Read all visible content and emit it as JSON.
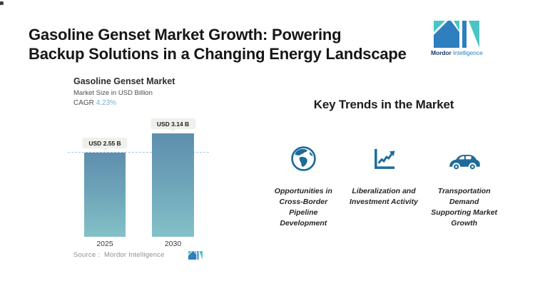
{
  "header": {
    "title_line1": "Gasoline Genset Market Growth: Powering",
    "title_line2": "Backup Solutions in a Changing Energy Landscape"
  },
  "logo": {
    "brand_bold": "Mordor",
    "brand_light": "Intelligence"
  },
  "chart": {
    "title": "Gasoline Genset Market",
    "subtitle": "Market Size in USD Billion",
    "cagr_label": "CAGR",
    "cagr_value": "4.23%",
    "source_label": "Source :",
    "source_value": "Mordor Intelligence"
  },
  "chart_data": {
    "type": "bar",
    "title": "Gasoline Genset Market",
    "subtitle": "Market Size in USD Billion",
    "unit": "USD Billion",
    "cagr_pct": 4.23,
    "categories": [
      "2025",
      "2030"
    ],
    "values": [
      2.55,
      3.14
    ],
    "bar_labels": [
      "USD 2.55 B",
      "USD 3.14 B"
    ],
    "ylim": [
      0,
      3.5
    ],
    "grid": false,
    "reference_line": 2.55,
    "legend": "none"
  },
  "trends": {
    "heading": "Key Trends in the Market",
    "items": [
      {
        "icon": "globe-icon",
        "label": "Opportunities in Cross-Border Pipeline Development"
      },
      {
        "icon": "trend-chart-icon",
        "label": "Liberalization and Investment Activity"
      },
      {
        "icon": "car-icon",
        "label": "Transportation Demand Supporting Market Growth"
      }
    ]
  },
  "colors": {
    "logo_teal": "#4cc4c6",
    "logo_blue": "#2e7fbe",
    "icon_blue": "#1e6b99",
    "bar_gradient_top": "#5e8fae",
    "bar_gradient_bottom": "#83c1c7",
    "cagr_value_color": "#79afd1",
    "dash_line": "#a5c9dc",
    "chip_bg": "#eef0ec"
  }
}
